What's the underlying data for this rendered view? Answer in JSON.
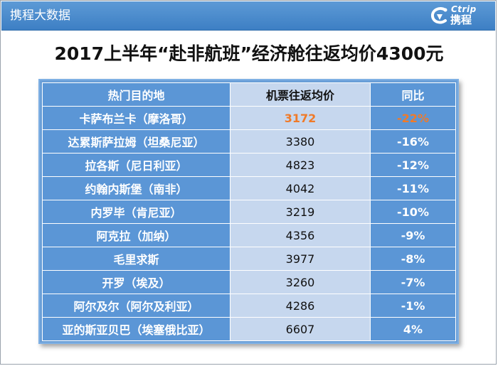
{
  "header": {
    "title": "携程大数据",
    "logo_en": "Ctrip",
    "logo_cn": "携程"
  },
  "main_title": "2017上半年“赴非航班”经济舱往返均价4300元",
  "table": {
    "headers": [
      "热门目的地",
      "机票往返均价",
      "同比"
    ],
    "rows": [
      {
        "destination": "卡萨布兰卡（摩洛哥）",
        "price": "3172",
        "yoy": "-22%"
      },
      {
        "destination": "达累斯萨拉姆（坦桑尼亚）",
        "price": "3380",
        "yoy": "-16%"
      },
      {
        "destination": "拉各斯（尼日利亚）",
        "price": "4823",
        "yoy": "-12%"
      },
      {
        "destination": "约翰内斯堡（南非）",
        "price": "4042",
        "yoy": "-11%"
      },
      {
        "destination": "内罗毕（肯尼亚）",
        "price": "3219",
        "yoy": "-10%"
      },
      {
        "destination": "阿克拉（加纳）",
        "price": "4356",
        "yoy": "-9%"
      },
      {
        "destination": "毛里求斯",
        "price": "3977",
        "yoy": "-8%"
      },
      {
        "destination": "开罗（埃及）",
        "price": "3260",
        "yoy": "-7%"
      },
      {
        "destination": "阿尔及尔（阿尔及利亚）",
        "price": "4286",
        "yoy": "-1%"
      },
      {
        "destination": "亚的斯亚贝巴（埃塞俄比亚）",
        "price": "6607",
        "yoy": "4%"
      }
    ]
  },
  "colors": {
    "header_blue": "#4a8bcd",
    "table_blue": "#5b96d6",
    "table_light": "#c6d7ee",
    "highlight_orange": "#f07a28"
  },
  "icons": {
    "logo": "ctrip-logo-icon"
  }
}
